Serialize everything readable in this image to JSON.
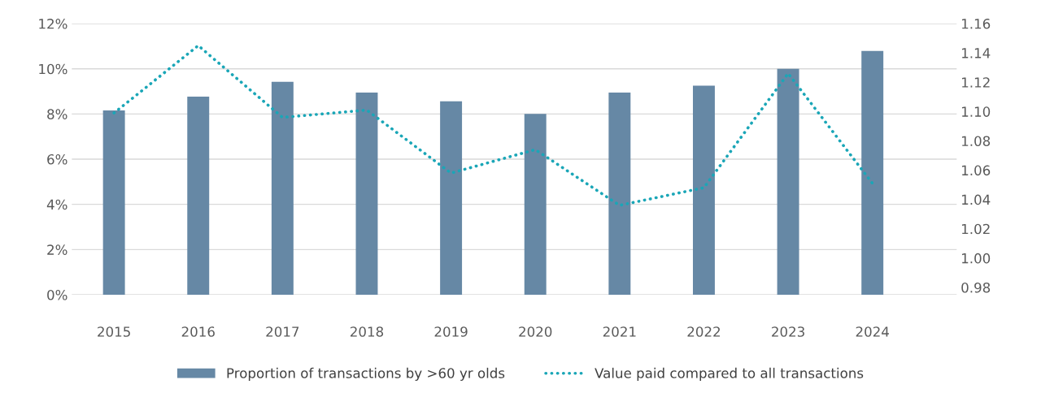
{
  "chart_data": {
    "type": "bar",
    "categories": [
      "2015",
      "2016",
      "2017",
      "2018",
      "2019",
      "2020",
      "2021",
      "2022",
      "2023",
      "2024"
    ],
    "series": [
      {
        "name": "Proportion of transactions by >60 yr olds",
        "color": "#6688a5",
        "values": [
          8.16,
          8.77,
          9.42,
          8.95,
          8.56,
          8.0,
          8.95,
          9.25,
          10.0,
          10.79
        ]
      },
      {
        "name": "Value paid compared to all transactions",
        "type": "line",
        "axis": "y2",
        "color": "#1aa6b7",
        "line_style": "dotted",
        "values": [
          1.099,
          1.145,
          1.096,
          1.101,
          1.058,
          1.074,
          1.036,
          1.048,
          1.126,
          1.051
        ]
      }
    ],
    "ylim": [
      0,
      12
    ],
    "yticks": [
      {
        "value": 0,
        "label": "0%"
      },
      {
        "value": 2,
        "label": "2%"
      },
      {
        "value": 4,
        "label": "4%"
      },
      {
        "value": 6,
        "label": "6%"
      },
      {
        "value": 8,
        "label": "8%"
      },
      {
        "value": 10,
        "label": "10%"
      },
      {
        "value": 12,
        "label": "12%"
      }
    ],
    "y2lim": [
      0.975,
      1.16
    ],
    "y2ticks": [
      {
        "value": 0.98,
        "label": "0.98"
      },
      {
        "value": 1.0,
        "label": "1.00"
      },
      {
        "value": 1.02,
        "label": "1.02"
      },
      {
        "value": 1.04,
        "label": "1.04"
      },
      {
        "value": 1.06,
        "label": "1.06"
      },
      {
        "value": 1.08,
        "label": "1.08"
      },
      {
        "value": 1.1,
        "label": "1.10"
      },
      {
        "value": 1.12,
        "label": "1.12"
      },
      {
        "value": 1.14,
        "label": "1.14"
      },
      {
        "value": 1.16,
        "label": "1.16"
      }
    ],
    "grid": "y",
    "legend": "bottom"
  }
}
